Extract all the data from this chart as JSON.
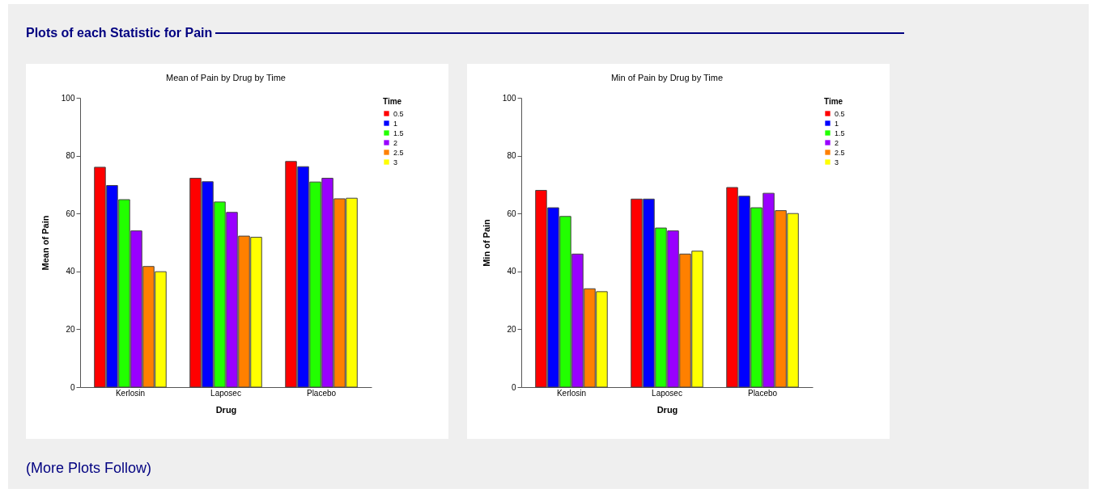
{
  "chart_data": [
    {
      "type": "bar",
      "title": "Mean of Pain by Drug by Time",
      "xlabel": "Drug",
      "ylabel": "Mean of Pain",
      "legend_title": "Time",
      "legend": "right",
      "grid": false,
      "annotations": [
        "Plots of each Statistic for Pain"
      ],
      "categories": [
        "Kerlosin",
        "Laposec",
        "Placebo"
      ],
      "ylim": [
        0,
        100
      ],
      "yticks": [
        0,
        20,
        40,
        60,
        80,
        100
      ],
      "series": [
        {
          "name": "0.5",
          "color": "#ff0000",
          "values": [
            76.0,
            72.2,
            78.0
          ]
        },
        {
          "name": "1",
          "color": "#0000ff",
          "values": [
            69.7,
            71.0,
            76.2
          ]
        },
        {
          "name": "1.5",
          "color": "#22ff00",
          "values": [
            64.8,
            64.0,
            70.9
          ]
        },
        {
          "name": "2",
          "color": "#9900ff",
          "values": [
            54.0,
            60.4,
            72.2
          ]
        },
        {
          "name": "2.5",
          "color": "#ff8000",
          "values": [
            41.7,
            52.2,
            65.1
          ]
        },
        {
          "name": "3",
          "color": "#ffff00",
          "values": [
            39.9,
            51.8,
            65.3
          ]
        }
      ]
    },
    {
      "type": "bar",
      "title": "Min of Pain by Drug by Time",
      "xlabel": "Drug",
      "ylabel": "Min of Pain",
      "legend_title": "Time",
      "legend": "right",
      "grid": false,
      "annotations": [
        "(More Plots Follow)"
      ],
      "categories": [
        "Kerlosin",
        "Laposec",
        "Placebo"
      ],
      "ylim": [
        0,
        100
      ],
      "yticks": [
        0,
        20,
        40,
        60,
        80,
        100
      ],
      "series": [
        {
          "name": "0.5",
          "color": "#ff0000",
          "values": [
            68,
            65,
            69
          ]
        },
        {
          "name": "1",
          "color": "#0000ff",
          "values": [
            62,
            65,
            66
          ]
        },
        {
          "name": "1.5",
          "color": "#22ff00",
          "values": [
            59,
            55,
            62
          ]
        },
        {
          "name": "2",
          "color": "#9900ff",
          "values": [
            46,
            54,
            67
          ]
        },
        {
          "name": "2.5",
          "color": "#ff8000",
          "values": [
            34,
            46,
            61
          ]
        },
        {
          "name": "3",
          "color": "#ffff00",
          "values": [
            33,
            47,
            60
          ]
        }
      ]
    }
  ]
}
